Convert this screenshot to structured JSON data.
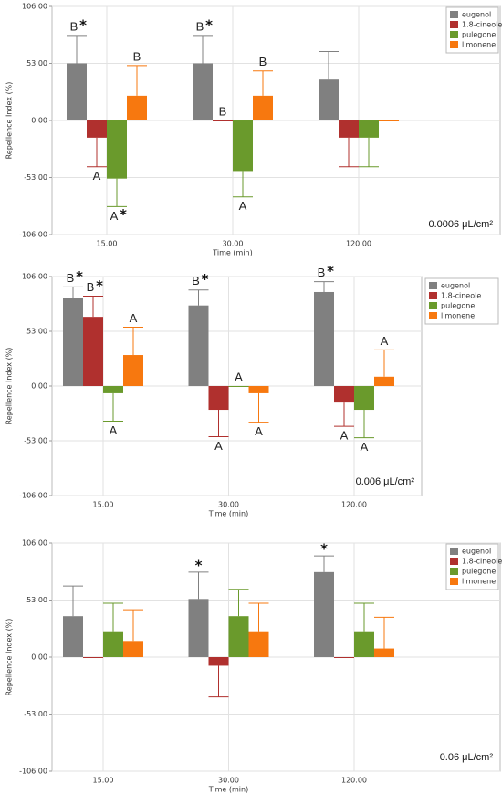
{
  "chart_data": [
    {
      "type": "bar",
      "ylabel": "Repellence Index (%)",
      "xlabel": "Time (min)",
      "condition": "0.0006 μL/cm²",
      "categories": [
        "15.00",
        "30.00",
        "120.00"
      ],
      "ylim": [
        -106,
        106
      ],
      "yticks": [
        {
          "value": -106,
          "label": "-106.00"
        },
        {
          "value": -53,
          "label": "-53.00"
        },
        {
          "value": 0,
          "label": "0.00"
        },
        {
          "value": 53,
          "label": "53.00"
        },
        {
          "value": 106,
          "label": "106.00"
        }
      ],
      "grid": true,
      "legend": "upper right",
      "series": [
        {
          "name": "eugenol",
          "color": "#808080",
          "values": [
            53,
            53,
            38
          ],
          "errors": [
            26,
            26,
            26
          ],
          "letters": [
            "B",
            "B",
            null
          ],
          "stars": [
            "*",
            "*",
            null
          ]
        },
        {
          "name": "1.8-cineole",
          "color": "#b0302e",
          "values": [
            -16,
            0,
            -16
          ],
          "errors": [
            27,
            null,
            27
          ],
          "letters": [
            "A",
            "B",
            null
          ],
          "stars": [
            null,
            null,
            null
          ]
        },
        {
          "name": "pulegone",
          "color": "#6a9a2c",
          "values": [
            -54,
            -47,
            -16
          ],
          "errors": [
            26,
            24,
            27
          ],
          "letters": [
            "A",
            "A",
            null
          ],
          "stars": [
            "*",
            null,
            null
          ]
        },
        {
          "name": "limonene",
          "color": "#f7780f",
          "values": [
            23,
            23,
            0
          ],
          "errors": [
            28,
            23,
            null
          ],
          "letters": [
            "B",
            "B",
            null
          ],
          "stars": [
            null,
            null,
            null
          ]
        }
      ]
    },
    {
      "type": "bar",
      "ylabel": "Repellence Index (%)",
      "xlabel": "Time (min)",
      "condition": "0.006 μL/cm²",
      "categories": [
        "15.00",
        "30.00",
        "120.00"
      ],
      "ylim": [
        -106,
        106
      ],
      "yticks": [
        {
          "value": -106,
          "label": "-106.00"
        },
        {
          "value": -53,
          "label": "-53.00"
        },
        {
          "value": 0,
          "label": "0.00"
        },
        {
          "value": 53,
          "label": "53.00"
        },
        {
          "value": 106,
          "label": "106.00"
        }
      ],
      "grid": true,
      "legend": "outside right",
      "series": [
        {
          "name": "eugenol",
          "color": "#808080",
          "values": [
            85,
            78,
            91
          ],
          "errors": [
            11,
            15,
            10
          ],
          "letters": [
            "B",
            "B",
            "B"
          ],
          "stars": [
            "*",
            "*",
            "*"
          ]
        },
        {
          "name": "1.8-cineole",
          "color": "#b0302e",
          "values": [
            67,
            -23,
            -16
          ],
          "errors": [
            20,
            26,
            23
          ],
          "letters": [
            "B",
            "A",
            "A"
          ],
          "stars": [
            "*",
            null,
            null
          ]
        },
        {
          "name": "pulegone",
          "color": "#6a9a2c",
          "values": [
            -7,
            0,
            -23
          ],
          "errors": [
            27,
            null,
            27
          ],
          "letters": [
            "A",
            "A",
            "A"
          ],
          "stars": [
            null,
            null,
            null
          ]
        },
        {
          "name": "limonene",
          "color": "#f7780f",
          "values": [
            30,
            -7,
            9
          ],
          "errors": [
            27,
            28,
            26
          ],
          "letters": [
            "A",
            "A",
            "A"
          ],
          "stars": [
            null,
            null,
            null
          ]
        }
      ]
    },
    {
      "type": "bar",
      "ylabel": "Repellence Index (%)",
      "xlabel": "Time (min)",
      "condition": "0.06 μL/cm²",
      "categories": [
        "15.00",
        "30.00",
        "120.00"
      ],
      "ylim": [
        -106,
        106
      ],
      "yticks": [
        {
          "value": -106,
          "label": "-106.00"
        },
        {
          "value": -53,
          "label": "-53.00"
        },
        {
          "value": 0,
          "label": "0.00"
        },
        {
          "value": 53,
          "label": "53.00"
        },
        {
          "value": 106,
          "label": "106.00"
        }
      ],
      "grid": true,
      "legend": "upper right",
      "series": [
        {
          "name": "eugenol",
          "color": "#808080",
          "values": [
            38,
            54,
            79
          ],
          "errors": [
            28,
            25,
            15
          ],
          "letters": [
            null,
            null,
            null
          ],
          "stars": [
            null,
            "*",
            "*"
          ]
        },
        {
          "name": "1.8-cineole",
          "color": "#b0302e",
          "values": [
            0,
            -8,
            0
          ],
          "errors": [
            null,
            29,
            null
          ],
          "letters": [
            null,
            null,
            null
          ],
          "stars": [
            null,
            null,
            null
          ]
        },
        {
          "name": "pulegone",
          "color": "#6a9a2c",
          "values": [
            24,
            38,
            24
          ],
          "errors": [
            26,
            25,
            26
          ],
          "letters": [
            null,
            null,
            null
          ],
          "stars": [
            null,
            null,
            null
          ]
        },
        {
          "name": "limonene",
          "color": "#f7780f",
          "values": [
            15,
            24,
            8
          ],
          "errors": [
            29,
            26,
            29
          ],
          "letters": [
            null,
            null,
            null
          ],
          "stars": [
            null,
            null,
            null
          ]
        }
      ]
    }
  ]
}
